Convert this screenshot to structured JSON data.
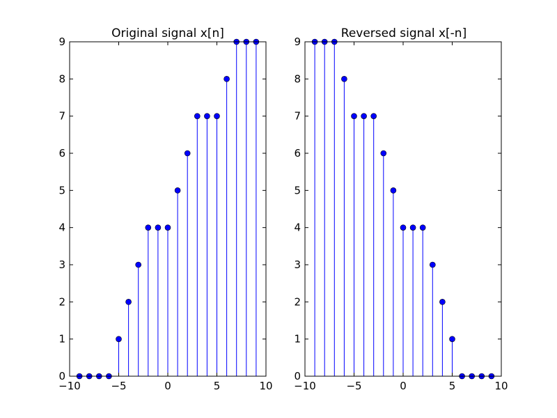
{
  "chart_data": [
    {
      "type": "stem",
      "title": "Original signal x[n]",
      "xlabel": "",
      "ylabel": "",
      "xlim": [
        -10,
        10
      ],
      "ylim": [
        0,
        9
      ],
      "xticks": [
        -10,
        -5,
        0,
        5,
        10
      ],
      "xtick_labels": [
        "−10",
        "−5",
        "0",
        "5",
        "10"
      ],
      "yticks": [
        0,
        1,
        2,
        3,
        4,
        5,
        6,
        7,
        8,
        9
      ],
      "ytick_labels": [
        "0",
        "1",
        "2",
        "3",
        "4",
        "5",
        "6",
        "7",
        "8",
        "9"
      ],
      "grid": false,
      "color": "#0000ff",
      "x": [
        -9,
        -8,
        -7,
        -6,
        -5,
        -4,
        -3,
        -2,
        -1,
        0,
        1,
        2,
        3,
        4,
        5,
        6,
        7,
        8,
        9
      ],
      "y": [
        0,
        0,
        0,
        0,
        1,
        2,
        3,
        4,
        4,
        4,
        5,
        6,
        7,
        7,
        7,
        8,
        9,
        9,
        9
      ]
    },
    {
      "type": "stem",
      "title": "Reversed signal x[-n]",
      "xlabel": "",
      "ylabel": "",
      "xlim": [
        -10,
        10
      ],
      "ylim": [
        0,
        9
      ],
      "xticks": [
        -10,
        -5,
        0,
        5,
        10
      ],
      "xtick_labels": [
        "−10",
        "−5",
        "0",
        "5",
        "10"
      ],
      "yticks": [
        0,
        1,
        2,
        3,
        4,
        5,
        6,
        7,
        8,
        9
      ],
      "ytick_labels": [
        "0",
        "1",
        "2",
        "3",
        "4",
        "5",
        "6",
        "7",
        "8",
        "9"
      ],
      "grid": false,
      "color": "#0000ff",
      "x": [
        -9,
        -8,
        -7,
        -6,
        -5,
        -4,
        -3,
        -2,
        -1,
        0,
        1,
        2,
        3,
        4,
        5,
        6,
        7,
        8,
        9
      ],
      "y": [
        9,
        9,
        9,
        8,
        7,
        7,
        7,
        6,
        5,
        4,
        4,
        4,
        3,
        2,
        1,
        0,
        0,
        0,
        0
      ]
    }
  ]
}
